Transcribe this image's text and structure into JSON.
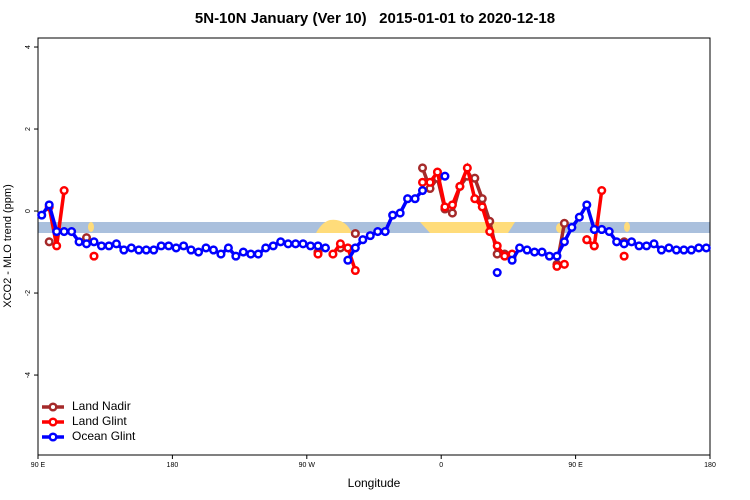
{
  "chart_data": {
    "type": "line",
    "title": "5N-10N January (Ver 10)   2015-01-01 to 2020-12-18",
    "xlabel": "Longitude",
    "ylabel": "XCO2 - MLO trend (ppm)",
    "xlim": [
      90,
      540
    ],
    "xticks": [
      {
        "value": 90,
        "label": "90 E"
      },
      180,
      {
        "value": 270,
        "label": "90 W"
      },
      {
        "value": 360,
        "label": "0"
      },
      {
        "value": 450,
        "label": "90 E"
      },
      {
        "value": 540,
        "label": "180"
      }
    ],
    "ylim": [
      -5.95,
      4.22
    ],
    "yticks": [
      4,
      2,
      0,
      -2,
      -4
    ],
    "legend": "bottom-left",
    "x": [
      92.5,
      97.5,
      102.5,
      107.5,
      112.5,
      117.5,
      122.5,
      127.5,
      132.5,
      137.5,
      142.5,
      147.5,
      152.5,
      157.5,
      162.5,
      167.5,
      172.5,
      177.5,
      182.5,
      187.5,
      192.5,
      197.5,
      202.5,
      207.5,
      212.5,
      217.5,
      222.5,
      227.5,
      232.5,
      237.5,
      242.5,
      247.5,
      252.5,
      257.5,
      262.5,
      267.5,
      272.5,
      277.5,
      282.5,
      287.5,
      292.5,
      297.5,
      302.5,
      307.5,
      312.5,
      317.5,
      322.5,
      327.5,
      332.5,
      337.5,
      342.5,
      347.5,
      352.5,
      357.5,
      362.5,
      367.5,
      372.5,
      377.5,
      382.5,
      387.5,
      392.5,
      397.5,
      402.5,
      407.5,
      412.5,
      417.5,
      422.5,
      427.5,
      432.5,
      437.5,
      442.5,
      447.5,
      452.5,
      457.5,
      462.5,
      467.5,
      472.5,
      477.5,
      482.5,
      487.5,
      492.5,
      497.5,
      502.5,
      507.5,
      512.5,
      517.5,
      522.5,
      527.5,
      532.5,
      537.5
    ],
    "series": [
      {
        "name": "Land Nadir",
        "color": "#a52a2a",
        "values": [
          null,
          -0.75,
          null,
          null,
          null,
          null,
          -0.65,
          null,
          null,
          null,
          null,
          null,
          null,
          null,
          null,
          null,
          null,
          null,
          null,
          null,
          null,
          null,
          null,
          null,
          null,
          null,
          null,
          null,
          null,
          null,
          null,
          null,
          null,
          null,
          null,
          null,
          null,
          -1.0,
          null,
          null,
          -0.9,
          null,
          -0.55,
          null,
          null,
          null,
          null,
          null,
          null,
          null,
          null,
          1.05,
          0.55,
          0.8,
          0.05,
          -0.05,
          0.6,
          0.85,
          0.8,
          0.3,
          -0.25,
          -1.05,
          -1.05,
          -1.1,
          null,
          null,
          null,
          null,
          null,
          -1.3,
          -0.3,
          null,
          null,
          -0.7,
          -0.85,
          null,
          null,
          null,
          -0.75,
          null,
          null,
          null,
          null,
          null,
          null,
          null,
          null,
          null,
          null,
          null
        ]
      },
      {
        "name": "Land Glint",
        "color": "#ff0000",
        "values": [
          null,
          0.1,
          -0.85,
          0.5,
          null,
          null,
          null,
          -1.1,
          null,
          null,
          null,
          null,
          null,
          null,
          null,
          null,
          null,
          null,
          null,
          null,
          null,
          null,
          null,
          null,
          null,
          null,
          null,
          null,
          null,
          null,
          null,
          null,
          null,
          null,
          null,
          null,
          null,
          -1.05,
          null,
          -1.05,
          -0.8,
          -0.9,
          -1.45,
          null,
          null,
          null,
          null,
          null,
          null,
          null,
          null,
          0.7,
          0.7,
          0.95,
          0.1,
          0.15,
          0.6,
          1.05,
          0.3,
          0.1,
          -0.5,
          -0.85,
          -1.1,
          -1.05,
          null,
          null,
          null,
          null,
          null,
          -1.35,
          -1.3,
          null,
          null,
          -0.7,
          -0.85,
          0.5,
          null,
          null,
          -1.1,
          null,
          null,
          null,
          null,
          null,
          null,
          null,
          null,
          null,
          null,
          null
        ]
      },
      {
        "name": "Ocean Glint",
        "color": "#0000ff",
        "values": [
          -0.1,
          0.15,
          -0.5,
          -0.5,
          -0.5,
          -0.75,
          -0.8,
          -0.75,
          -0.85,
          -0.85,
          -0.8,
          -0.95,
          -0.9,
          -0.95,
          -0.95,
          -0.95,
          -0.85,
          -0.85,
          -0.9,
          -0.85,
          -0.95,
          -1.0,
          -0.9,
          -0.95,
          -1.05,
          -0.9,
          -1.1,
          -1.0,
          -1.05,
          -1.05,
          -0.9,
          -0.85,
          -0.75,
          -0.8,
          -0.8,
          -0.8,
          -0.85,
          -0.85,
          -0.9,
          null,
          null,
          -1.2,
          -0.9,
          -0.7,
          -0.6,
          -0.5,
          -0.5,
          -0.1,
          -0.05,
          0.3,
          0.3,
          0.5,
          null,
          null,
          0.85,
          null,
          null,
          null,
          null,
          null,
          null,
          -1.5,
          null,
          -1.2,
          -0.9,
          -0.95,
          -1.0,
          -1.0,
          -1.1,
          -1.1,
          -0.75,
          -0.4,
          -0.15,
          0.15,
          -0.45,
          -0.45,
          -0.5,
          -0.75,
          -0.8,
          -0.75,
          -0.85,
          -0.85,
          -0.8,
          -0.95,
          -0.9,
          -0.95,
          -0.95,
          -0.95,
          -0.9,
          -0.9
        ]
      }
    ]
  }
}
